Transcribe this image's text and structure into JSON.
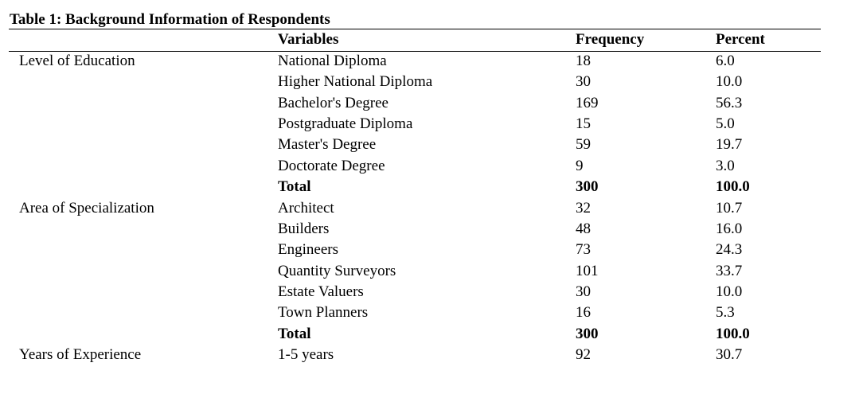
{
  "title": "Table 1: Background Information of Respondents",
  "headers": {
    "group": "",
    "variables": "Variables",
    "frequency": "Frequency",
    "percent": "Percent"
  },
  "rows": [
    {
      "group": "Level of Education",
      "variable": "National Diploma",
      "frequency": "18",
      "percent": "6.0",
      "bold": false
    },
    {
      "group": "",
      "variable": "Higher National Diploma",
      "frequency": "30",
      "percent": "10.0",
      "bold": false
    },
    {
      "group": "",
      "variable": "Bachelor's Degree",
      "frequency": "169",
      "percent": "56.3",
      "bold": false
    },
    {
      "group": "",
      "variable": "Postgraduate Diploma",
      "frequency": "15",
      "percent": "5.0",
      "bold": false
    },
    {
      "group": "",
      "variable": "Master's Degree",
      "frequency": "59",
      "percent": "19.7",
      "bold": false
    },
    {
      "group": "",
      "variable": "Doctorate Degree",
      "frequency": "9",
      "percent": "3.0",
      "bold": false
    },
    {
      "group": "",
      "variable": "Total",
      "frequency": "300",
      "percent": "100.0",
      "bold": true
    },
    {
      "group": "Area of Specialization",
      "variable": "Architect",
      "frequency": "32",
      "percent": "10.7",
      "bold": false
    },
    {
      "group": "",
      "variable": "Builders",
      "frequency": "48",
      "percent": "16.0",
      "bold": false
    },
    {
      "group": "",
      "variable": "Engineers",
      "frequency": "73",
      "percent": "24.3",
      "bold": false
    },
    {
      "group": "",
      "variable": "Quantity Surveyors",
      "frequency": "101",
      "percent": "33.7",
      "bold": false
    },
    {
      "group": "",
      "variable": "Estate Valuers",
      "frequency": "30",
      "percent": "10.0",
      "bold": false
    },
    {
      "group": "",
      "variable": "Town Planners",
      "frequency": "16",
      "percent": "5.3",
      "bold": false
    },
    {
      "group": "",
      "variable": "Total",
      "frequency": "300",
      "percent": "100.0",
      "bold": true
    },
    {
      "group": "Years of Experience",
      "variable": "1-5 years",
      "frequency": "92",
      "percent": "30.7",
      "bold": false
    }
  ]
}
